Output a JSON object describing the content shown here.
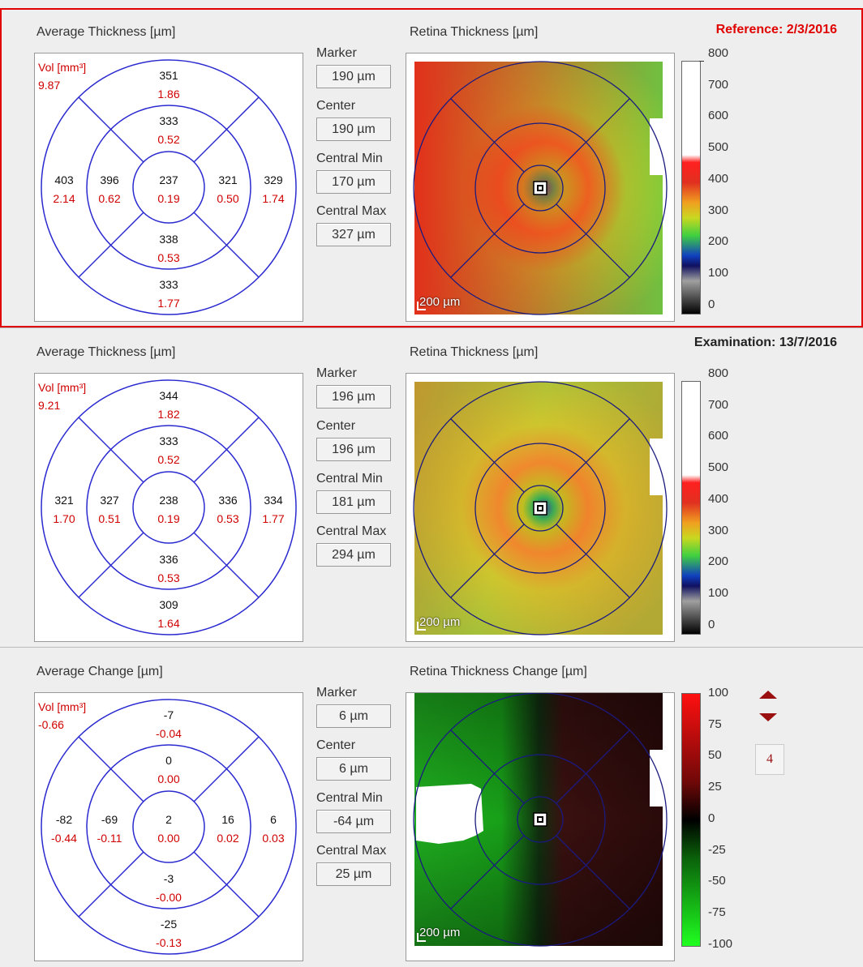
{
  "sections": [
    {
      "label": "Reference: 2/3/2016",
      "label_color": "#e00000",
      "chart_title": "Average Thickness [µm]",
      "vol_label": "Vol [mm³]",
      "vol_value": "9.87",
      "sectors": {
        "outer_top": [
          "351",
          "1.86"
        ],
        "inner_top": [
          "333",
          "0.52"
        ],
        "outer_left": [
          "403",
          "2.14"
        ],
        "inner_left": [
          "396",
          "0.62"
        ],
        "center": [
          "237",
          "0.19"
        ],
        "inner_right": [
          "321",
          "0.50"
        ],
        "outer_right": [
          "329",
          "1.74"
        ],
        "inner_bottom": [
          "338",
          "0.53"
        ],
        "outer_bottom": [
          "333",
          "1.77"
        ]
      },
      "measures": [
        {
          "label": "Marker",
          "value": "190 µm"
        },
        {
          "label": "Center",
          "value": "190 µm"
        },
        {
          "label": "Central Min",
          "value": "170 µm"
        },
        {
          "label": "Central Max",
          "value": "327 µm"
        }
      ],
      "map_title": "Retina Thickness [µm]",
      "map_scale": "200 µm",
      "colorbar_ticks": [
        "800",
        "700",
        "600",
        "500",
        "400",
        "300",
        "200",
        "100",
        "0"
      ]
    },
    {
      "label": "Examination: 13/7/2016",
      "label_color": "#222222",
      "chart_title": "Average Thickness [µm]",
      "vol_label": "Vol [mm³]",
      "vol_value": "9.21",
      "sectors": {
        "outer_top": [
          "344",
          "1.82"
        ],
        "inner_top": [
          "333",
          "0.52"
        ],
        "outer_left": [
          "321",
          "1.70"
        ],
        "inner_left": [
          "327",
          "0.51"
        ],
        "center": [
          "238",
          "0.19"
        ],
        "inner_right": [
          "336",
          "0.53"
        ],
        "outer_right": [
          "334",
          "1.77"
        ],
        "inner_bottom": [
          "336",
          "0.53"
        ],
        "outer_bottom": [
          "309",
          "1.64"
        ]
      },
      "measures": [
        {
          "label": "Marker",
          "value": "196 µm"
        },
        {
          "label": "Center",
          "value": "196 µm"
        },
        {
          "label": "Central Min",
          "value": "181 µm"
        },
        {
          "label": "Central Max",
          "value": "294 µm"
        }
      ],
      "map_title": "Retina Thickness [µm]",
      "map_scale": "200 µm",
      "colorbar_ticks": [
        "800",
        "700",
        "600",
        "500",
        "400",
        "300",
        "200",
        "100",
        "0"
      ]
    },
    {
      "label": "",
      "label_color": "#222222",
      "chart_title": "Average Change [µm]",
      "vol_label": "Vol [mm³]",
      "vol_value": "-0.66",
      "sectors": {
        "outer_top": [
          "-7",
          "-0.04"
        ],
        "inner_top": [
          "0",
          "0.00"
        ],
        "outer_left": [
          "-82",
          "-0.44"
        ],
        "inner_left": [
          "-69",
          "-0.11"
        ],
        "center": [
          "2",
          "0.00"
        ],
        "inner_right": [
          "16",
          "0.02"
        ],
        "outer_right": [
          "6",
          "0.03"
        ],
        "inner_bottom": [
          "-3",
          "-0.00"
        ],
        "outer_bottom": [
          "-25",
          "-0.13"
        ]
      },
      "measures": [
        {
          "label": "Marker",
          "value": "6 µm"
        },
        {
          "label": "Center",
          "value": "6 µm"
        },
        {
          "label": "Central Min",
          "value": "-64 µm"
        },
        {
          "label": "Central Max",
          "value": "25 µm"
        }
      ],
      "map_title": "Retina Thickness Change [µm]",
      "map_scale": "200 µm",
      "colorbar_ticks": [
        "100",
        "75",
        "50",
        "25",
        "0",
        "-25",
        "-50",
        "-75",
        "-100"
      ]
    }
  ],
  "controls": {
    "up_icon": "triangle-up-icon",
    "down_icon": "triangle-down-icon",
    "step_value": "4"
  },
  "colors": {
    "ring_color": "#2a2ad0",
    "red_text": "#d00000",
    "reference_border": "#e00000"
  }
}
